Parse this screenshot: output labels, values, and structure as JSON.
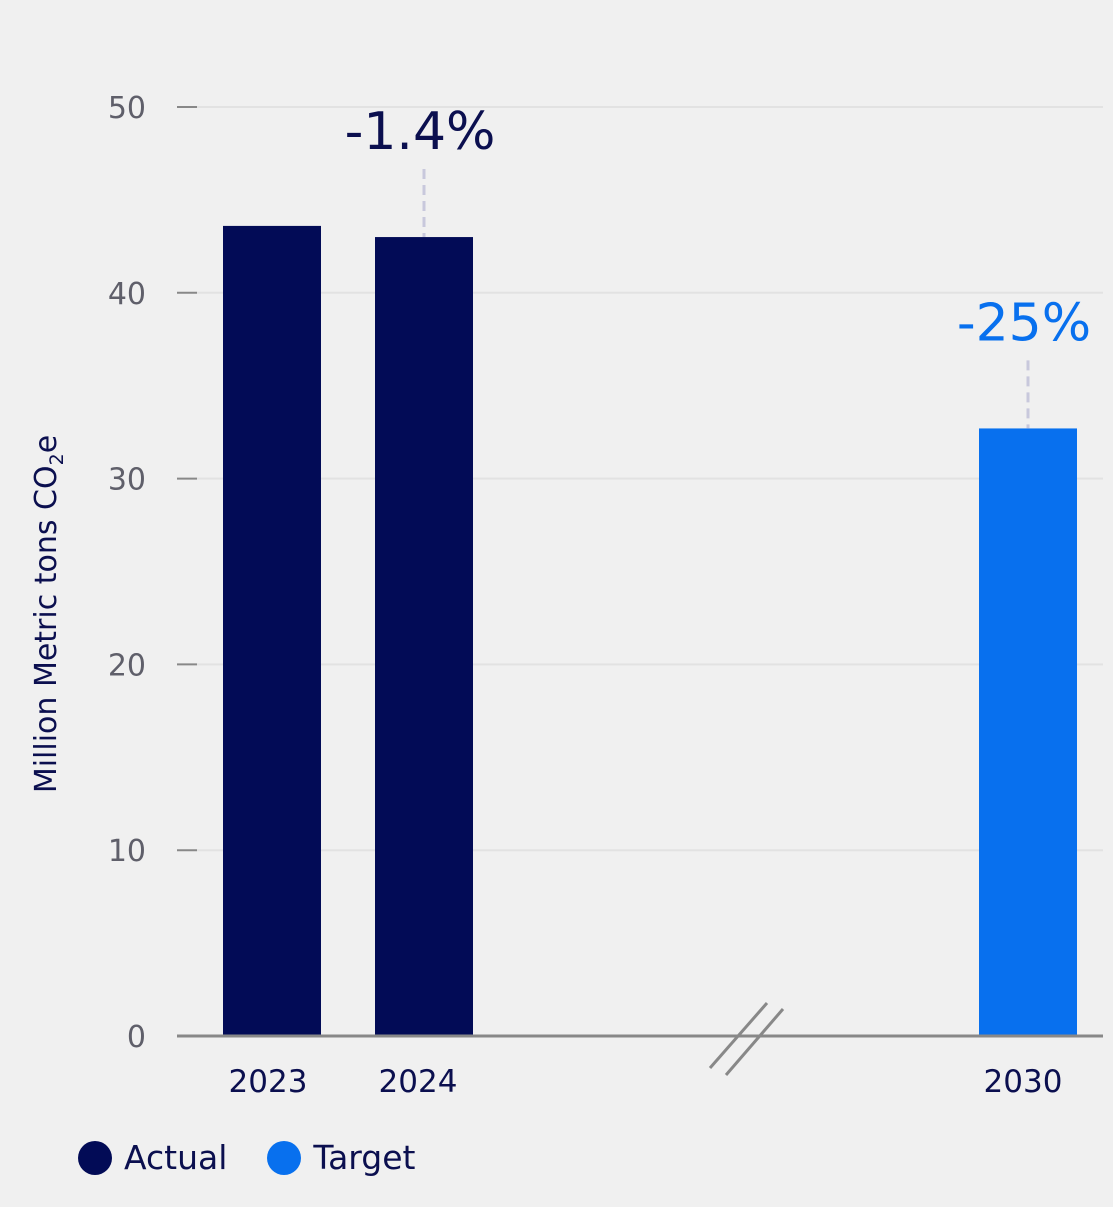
{
  "colors": {
    "actual": "#020b56",
    "target": "#0870ee",
    "grid": "#e2e2e2",
    "axis": "#888888",
    "connector": "#c8c8dc",
    "text_dark": "#0b0f4f"
  },
  "chart_data": {
    "type": "bar",
    "categories": [
      "2023",
      "2024",
      "2030"
    ],
    "values": [
      43.6,
      43.0,
      32.7
    ],
    "point_series": [
      "Actual",
      "Actual",
      "Target"
    ],
    "ylabel_main": "Million Metric tons  CO",
    "ylabel_sub": "2",
    "ylabel_end": "e",
    "ylim": [
      0,
      50
    ],
    "yticks": [
      0,
      10,
      20,
      30,
      40,
      50
    ],
    "grid": true,
    "axis_break_between": [
      "2024",
      "2030"
    ],
    "annotations": [
      {
        "category": "2024",
        "text": "-1.4%",
        "series": "Actual"
      },
      {
        "category": "2030",
        "text": "-25%",
        "series": "Target"
      }
    ],
    "legend": [
      {
        "name": "Actual",
        "color": "#020b56"
      },
      {
        "name": "Target",
        "color": "#0870ee"
      }
    ],
    "legend_position": "bottom-left"
  }
}
